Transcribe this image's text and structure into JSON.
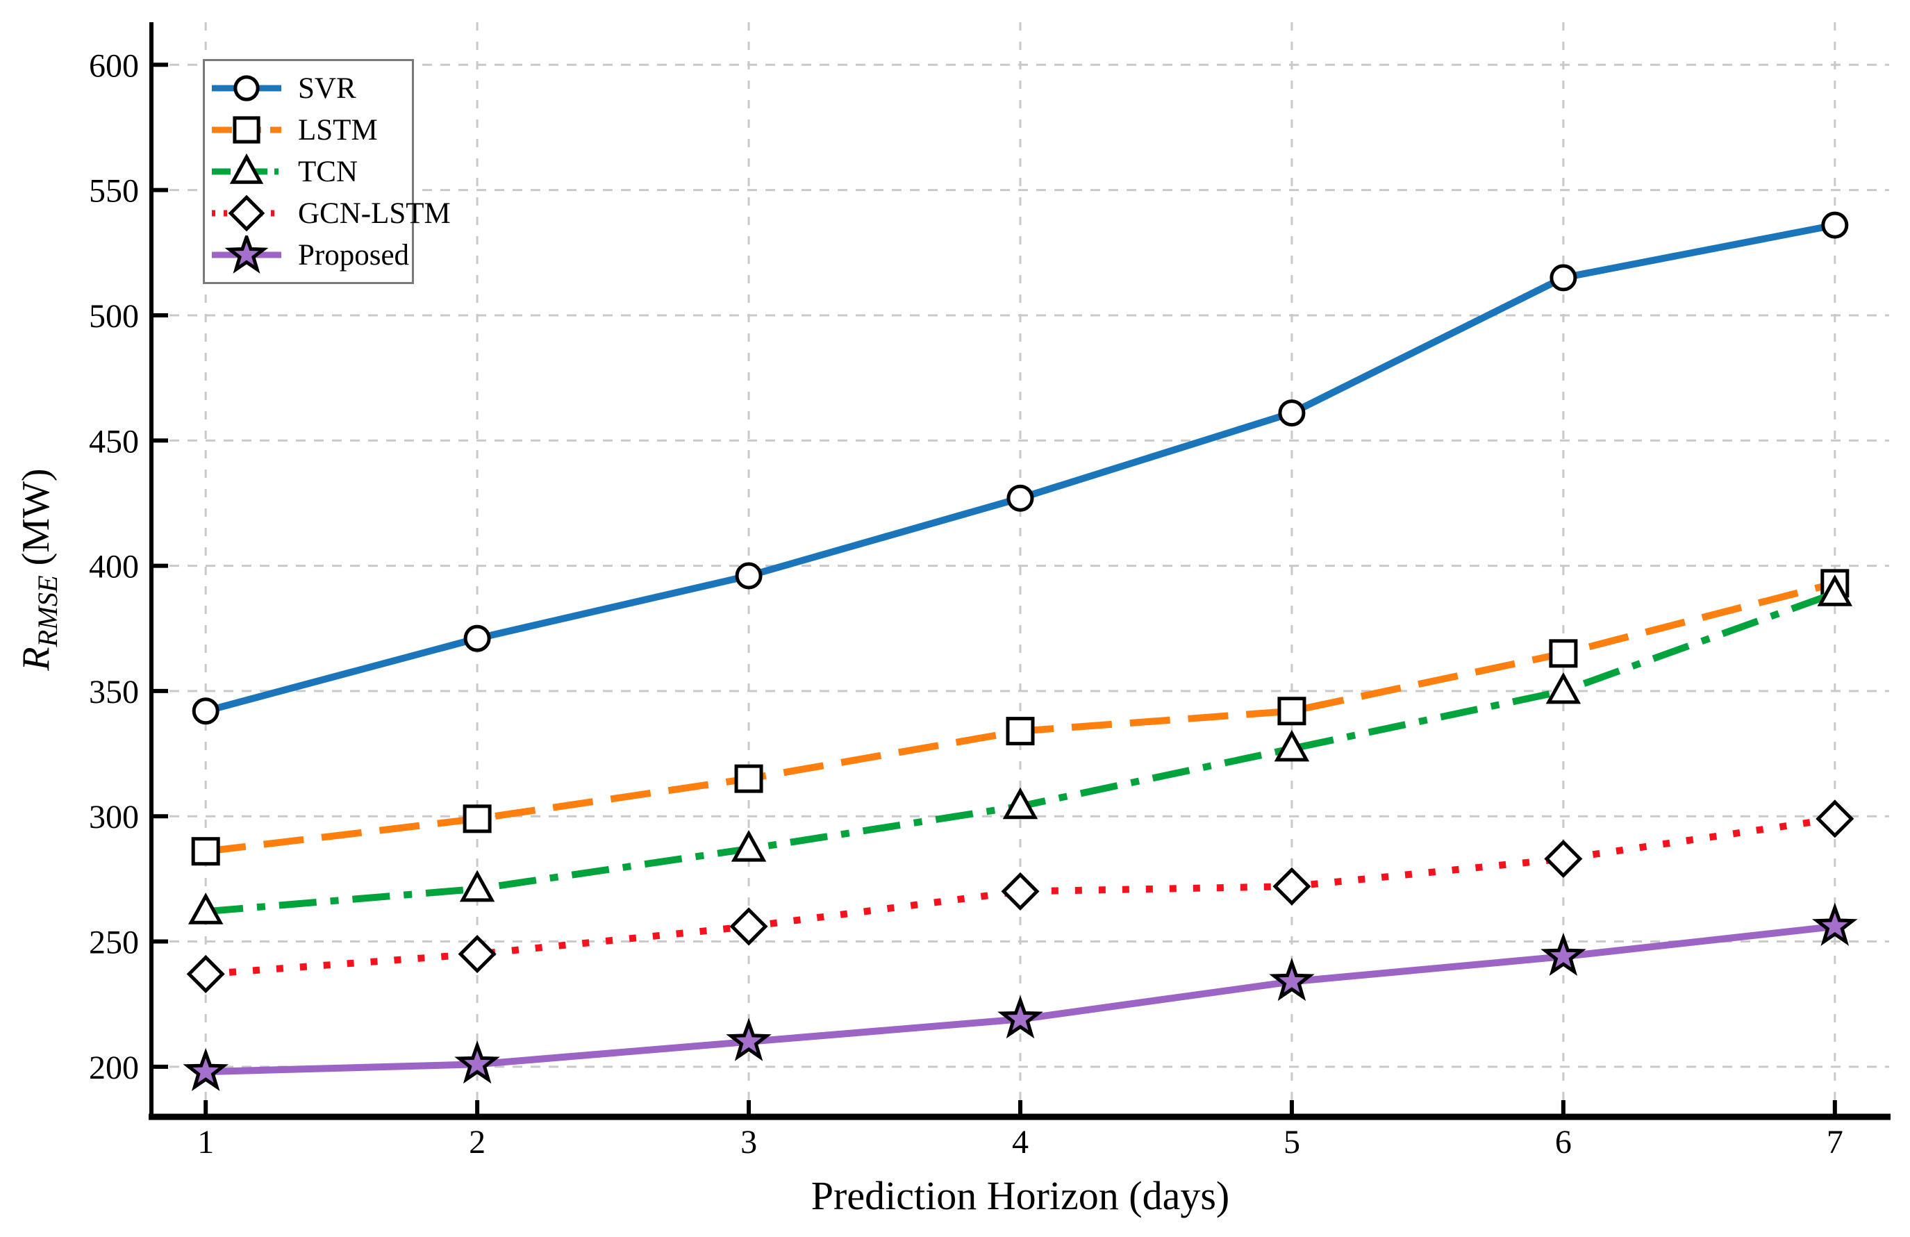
{
  "axes": {
    "x_label": "Prediction Horizon (days)",
    "y_label_main": "R",
    "y_label_sub": "RMSE",
    "y_label_unit": " (MW)"
  },
  "style": {
    "grid_color": "#c9c9c9",
    "spine_color": "#000000",
    "tick_text_color": "#000000",
    "legend_border_color": "#7a7a7a",
    "background": "#ffffff"
  },
  "chart_data": {
    "type": "line",
    "title": "",
    "xlabel": "Prediction Horizon (days)",
    "ylabel": "R_RMSE (MW)",
    "x": [
      1,
      2,
      3,
      4,
      5,
      6,
      7
    ],
    "xticks": [
      1,
      2,
      3,
      4,
      5,
      6,
      7
    ],
    "yticks": [
      200,
      250,
      300,
      350,
      400,
      450,
      500,
      550,
      600
    ],
    "xlim": [
      0.8,
      7.2
    ],
    "ylim": [
      180,
      617
    ],
    "grid": true,
    "legend_position": "upper left",
    "series": [
      {
        "name": "SVR",
        "color": "#1b75bb",
        "linestyle": "solid",
        "marker": "circle",
        "marker_fill": "#ffffff",
        "values": [
          342,
          371,
          396,
          427,
          461,
          515,
          536
        ]
      },
      {
        "name": "LSTM",
        "color": "#ff7f0e",
        "linestyle": "dashed",
        "marker": "square",
        "marker_fill": "#ffffff",
        "values": [
          286,
          299,
          315,
          334,
          342,
          365,
          393
        ]
      },
      {
        "name": "TCN",
        "color": "#00a33c",
        "linestyle": "dashdot",
        "marker": "triangle",
        "marker_fill": "#ffffff",
        "values": [
          262,
          271,
          287,
          304,
          327,
          350,
          389
        ]
      },
      {
        "name": "GCN-LSTM",
        "color": "#f5121d",
        "linestyle": "dotted",
        "marker": "diamond",
        "marker_fill": "#ffffff",
        "values": [
          237,
          245,
          256,
          270,
          272,
          283,
          299
        ]
      },
      {
        "name": "Proposed",
        "color": "#9c64c4",
        "linestyle": "solid",
        "marker": "star",
        "marker_fill": "#a470cc",
        "values": [
          198,
          201,
          210,
          219,
          234,
          244,
          256
        ]
      }
    ]
  }
}
